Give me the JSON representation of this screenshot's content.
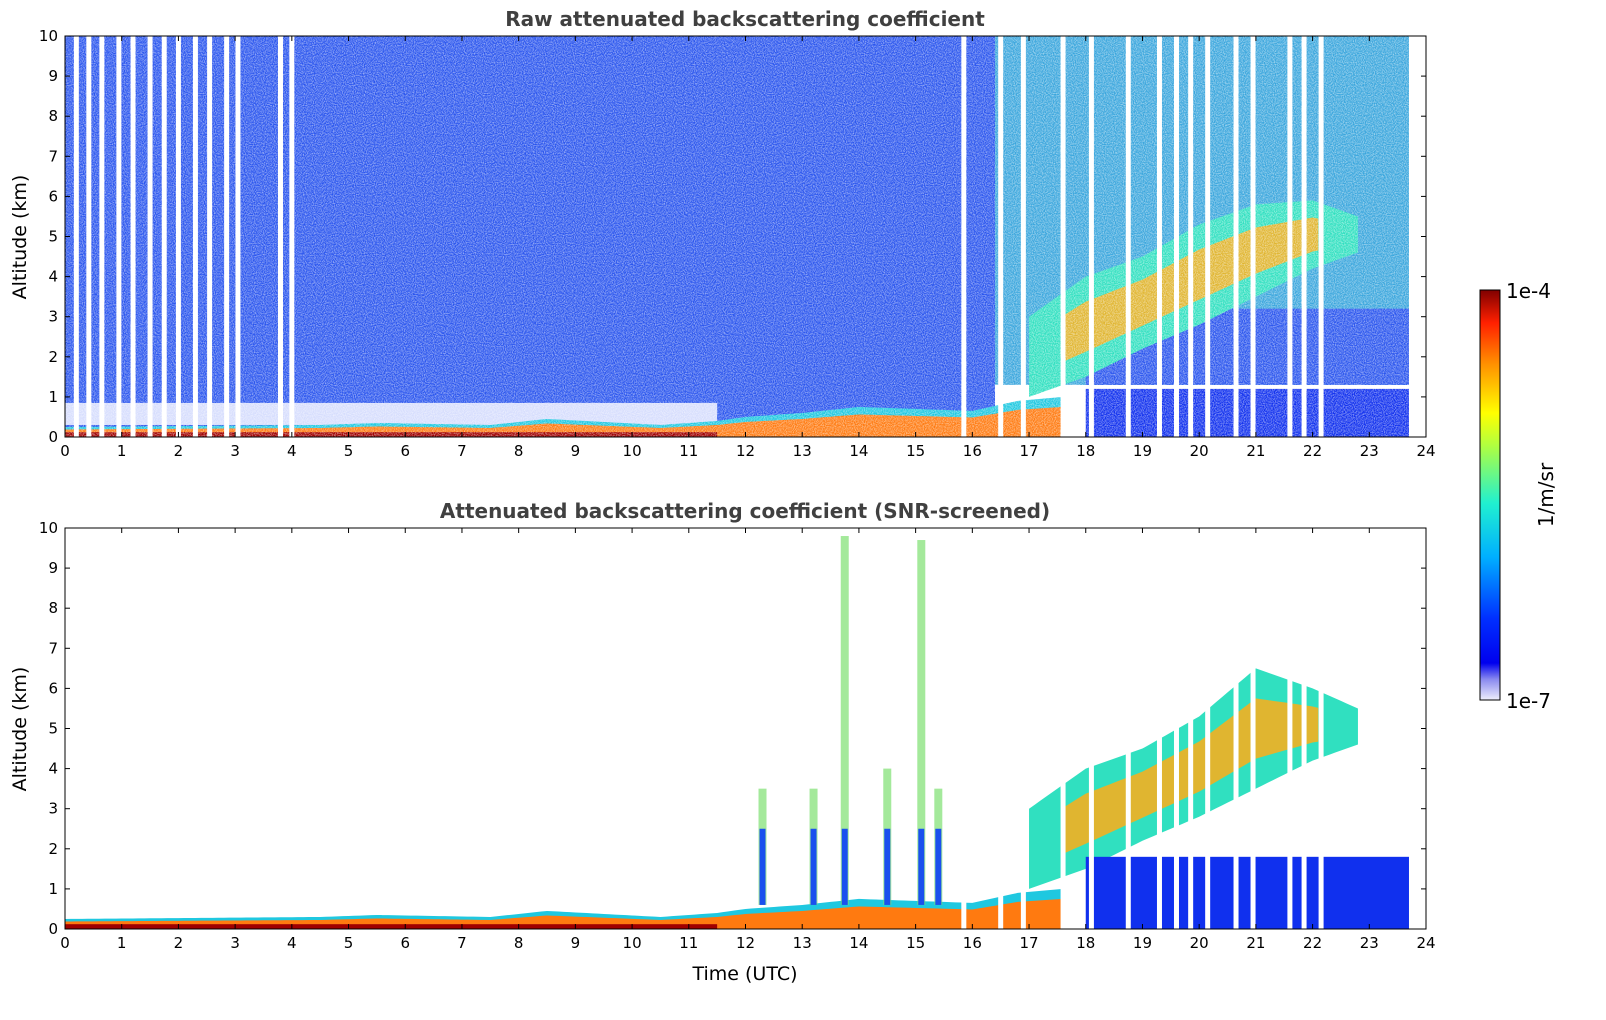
{
  "chart_data": [
    {
      "type": "heatmap",
      "title": "Raw attenuated backscattering coefficient",
      "xlabel": "",
      "ylabel": "Altitude (km)",
      "xlim": [
        0,
        24
      ],
      "ylim": [
        0,
        10
      ],
      "x_ticks": [
        "0",
        "1",
        "2",
        "3",
        "4",
        "5",
        "6",
        "7",
        "8",
        "9",
        "10",
        "11",
        "12",
        "13",
        "14",
        "15",
        "16",
        "17",
        "18",
        "19",
        "20",
        "21",
        "22",
        "23",
        "24"
      ],
      "y_ticks": [
        "0",
        "1",
        "2",
        "3",
        "4",
        "5",
        "6",
        "7",
        "8",
        "9",
        "10"
      ],
      "data_gaps_utc": [
        0.2,
        0.42,
        0.65,
        0.95,
        1.2,
        1.5,
        1.75,
        2.0,
        2.3,
        2.55,
        2.85,
        3.05,
        3.8,
        4.0,
        15.85,
        16.5,
        16.9,
        17.6,
        18.1,
        18.75,
        19.3,
        19.6,
        19.85,
        20.15,
        20.65,
        20.95,
        21.6,
        21.85,
        22.15
      ],
      "features": [
        {
          "kind": "surface_layer",
          "x": [
            0,
            4.5,
            5.5,
            7.5,
            8.5,
            10.5,
            11.5,
            12,
            13,
            14,
            15,
            16,
            16.8,
            17.6
          ],
          "top_km": [
            0.25,
            0.3,
            0.35,
            0.3,
            0.45,
            0.3,
            0.4,
            0.5,
            0.6,
            0.75,
            0.7,
            0.65,
            0.9,
            1.0
          ],
          "intensity": "high"
        },
        {
          "kind": "aerosol_plume",
          "x": [
            17.0,
            18.0,
            19.0,
            20.0,
            21.0,
            22.0,
            22.8
          ],
          "bottom_km": [
            1.0,
            1.5,
            2.2,
            2.8,
            3.5,
            4.2,
            4.6
          ],
          "top_km": [
            3.0,
            4.0,
            4.5,
            5.3,
            5.8,
            5.9,
            5.5
          ],
          "intensity": "medium-high"
        },
        {
          "kind": "low_layer_dense",
          "x": [
            18.0,
            23.7
          ],
          "top_km": [
            1.2,
            1.2
          ],
          "intensity": "low"
        }
      ],
      "data_end_utc": 23.7
    },
    {
      "type": "heatmap",
      "title": "Attenuated backscattering coefficient (SNR-screened)",
      "xlabel": "Time (UTC)",
      "ylabel": "Altitude (km)",
      "xlim": [
        0,
        24
      ],
      "ylim": [
        0,
        10
      ],
      "x_ticks": [
        "0",
        "1",
        "2",
        "3",
        "4",
        "5",
        "6",
        "7",
        "8",
        "9",
        "10",
        "11",
        "12",
        "13",
        "14",
        "15",
        "16",
        "17",
        "18",
        "19",
        "20",
        "21",
        "22",
        "23",
        "24"
      ],
      "y_ticks": [
        "0",
        "1",
        "2",
        "3",
        "4",
        "5",
        "6",
        "7",
        "8",
        "9",
        "10"
      ],
      "data_gaps_utc": [
        15.85,
        16.5,
        16.9,
        17.6,
        18.1,
        18.75,
        19.3,
        19.6,
        19.85,
        20.15,
        20.65,
        20.95,
        21.6,
        21.85,
        22.15
      ],
      "features": [
        {
          "kind": "surface_layer",
          "x": [
            0,
            4.5,
            5.5,
            7.5,
            8.5,
            10.5,
            11.5,
            12,
            13,
            14,
            15,
            16,
            16.8,
            17.6
          ],
          "top_km": [
            0.25,
            0.3,
            0.35,
            0.3,
            0.45,
            0.3,
            0.4,
            0.5,
            0.6,
            0.75,
            0.7,
            0.65,
            0.9,
            1.0
          ],
          "intensity": "high"
        },
        {
          "kind": "aerosol_plume",
          "x": [
            17.0,
            18.0,
            19.0,
            20.0,
            21.0,
            22.0,
            22.8
          ],
          "bottom_km": [
            1.0,
            1.5,
            2.2,
            2.8,
            3.5,
            4.2,
            4.6
          ],
          "top_km": [
            3.0,
            4.0,
            4.5,
            5.3,
            6.5,
            6.0,
            5.5
          ],
          "intensity": "medium-high"
        },
        {
          "kind": "low_layer_dense",
          "x": [
            18.0,
            23.7
          ],
          "top_km": [
            1.8,
            1.8
          ],
          "intensity": "low"
        },
        {
          "kind": "convective_spikes",
          "x": [
            12.3,
            13.2,
            13.75,
            14.5,
            15.1,
            15.4
          ],
          "top_km": [
            3.5,
            3.5,
            9.8,
            4.0,
            9.7,
            3.5
          ]
        }
      ],
      "data_end_utc": 23.7
    }
  ],
  "colorbar": {
    "label": "1/m/sr",
    "max_label": "1e-4",
    "min_label": "1e-7",
    "colormap": "jet"
  }
}
